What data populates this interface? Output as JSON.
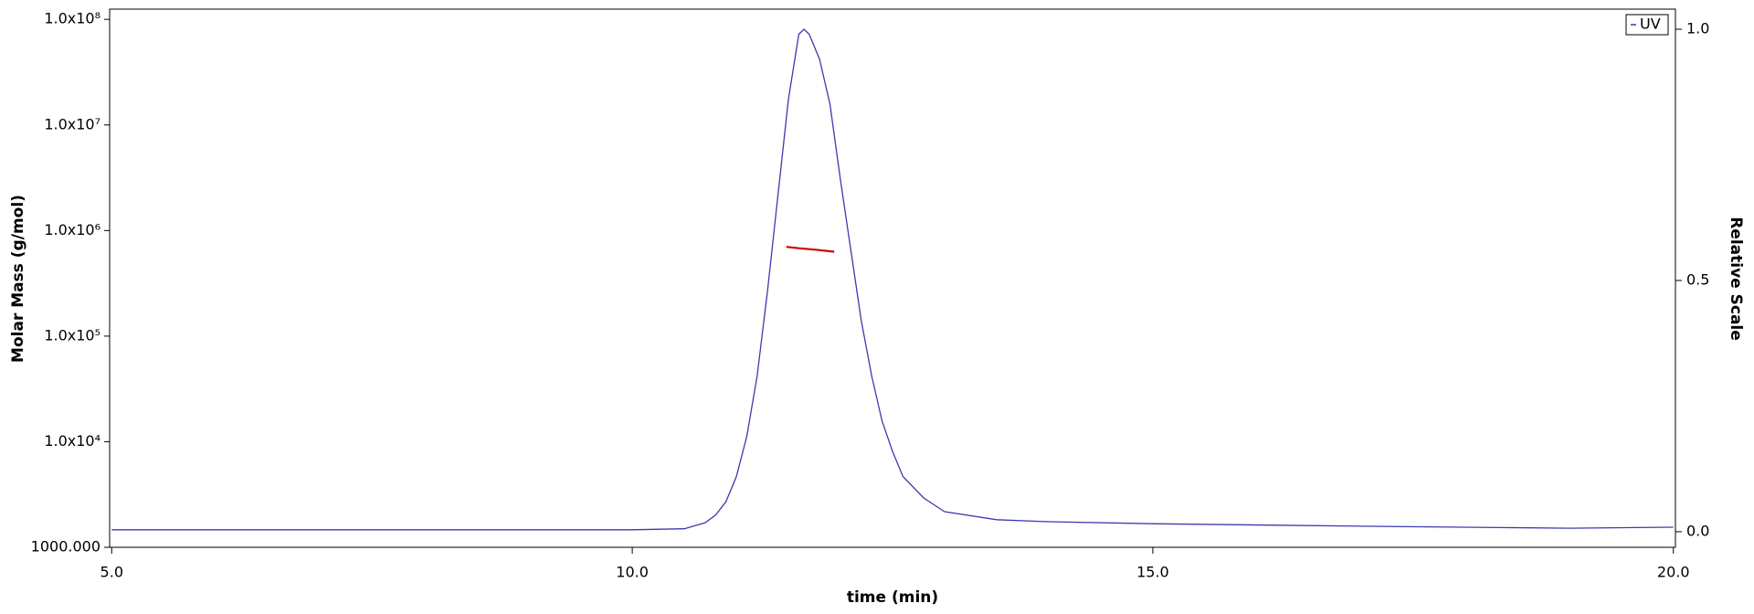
{
  "chart_data": {
    "type": "line",
    "x_label": "time (min)",
    "y_label": "Molar Mass (g/mol)",
    "y2_label": "Relative Scale",
    "xlim": [
      4.98,
      20.02
    ],
    "xticks": [
      {
        "value": 5,
        "label": "5.0"
      },
      {
        "value": 10,
        "label": "10.0"
      },
      {
        "value": 15,
        "label": "15.0"
      },
      {
        "value": 20,
        "label": "20.0"
      }
    ],
    "ylim": [
      1000,
      125000000
    ],
    "ylog": true,
    "yticks": [
      {
        "value": 1000,
        "label": "1000.000"
      },
      {
        "value": 10000,
        "label": "1.0x10⁴"
      },
      {
        "value": 100000,
        "label": "1.0x10⁵"
      },
      {
        "value": 1000000,
        "label": "1.0x10⁶"
      },
      {
        "value": 10000000,
        "label": "1.0x10⁷"
      },
      {
        "value": 100000000,
        "label": "1.0x10⁸"
      }
    ],
    "y2lim": [
      -0.031,
      1.04
    ],
    "y2ticks": [
      {
        "value": 0,
        "label": "0.0"
      },
      {
        "value": 0.5,
        "label": "0.5"
      },
      {
        "value": 1,
        "label": "1.0"
      }
    ],
    "legend": "top-right",
    "series": [
      {
        "name": "UV",
        "color": "#3b3bb0",
        "axis": "y2",
        "x": [
          5.0,
          10.0,
          10.5,
          10.7,
          10.8,
          10.9,
          11.0,
          11.1,
          11.2,
          11.3,
          11.4,
          11.5,
          11.6,
          11.65,
          11.7,
          11.8,
          11.9,
          12.0,
          12.1,
          12.2,
          12.3,
          12.4,
          12.5,
          12.6,
          12.8,
          13.0,
          13.5,
          14.0,
          15.0,
          17.0,
          19.0,
          20.0
        ],
        "values": [
          0.004,
          0.004,
          0.006,
          0.018,
          0.033,
          0.06,
          0.11,
          0.19,
          0.31,
          0.48,
          0.67,
          0.86,
          0.99,
          1.0,
          0.99,
          0.94,
          0.85,
          0.7,
          0.56,
          0.42,
          0.31,
          0.22,
          0.16,
          0.11,
          0.067,
          0.04,
          0.024,
          0.02,
          0.016,
          0.011,
          0.007,
          0.009
        ]
      },
      {
        "color": "#cc0000",
        "x": [
          11.48,
          11.6,
          11.75,
          11.94
        ],
        "values": [
          700000,
          680000,
          660000,
          630000
        ]
      }
    ]
  }
}
